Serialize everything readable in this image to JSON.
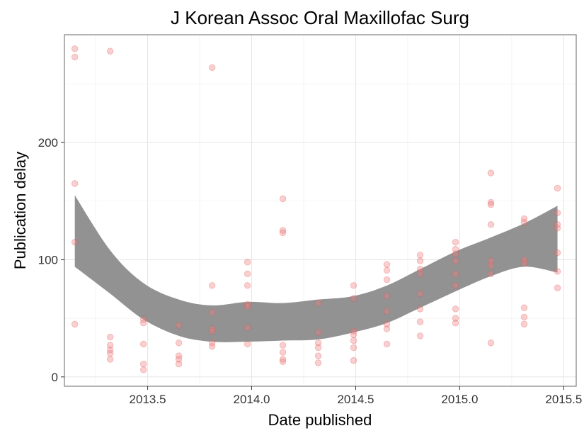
{
  "chart_data": {
    "type": "scatter",
    "title": "J Korean Assoc Oral Maxillofac Surg",
    "xlabel": "Date published",
    "ylabel": "Publication delay",
    "xlim": [
      2013.1,
      2015.56
    ],
    "ylim": [
      -8,
      292
    ],
    "x_ticks": [
      2013.5,
      2014.0,
      2014.5,
      2015.0,
      2015.5
    ],
    "x_tick_labels": [
      "2013.5",
      "2014.0",
      "2014.5",
      "2015.0",
      "2015.5"
    ],
    "y_ticks": [
      0,
      100,
      200
    ],
    "y_tick_labels": [
      "0",
      "100",
      "200"
    ],
    "grid": true,
    "point_color": "#f08080",
    "band_color": "#8c8c8c",
    "points": [
      {
        "x": 2013.15,
        "y": 280
      },
      {
        "x": 2013.15,
        "y": 273
      },
      {
        "x": 2013.15,
        "y": 165
      },
      {
        "x": 2013.15,
        "y": 115
      },
      {
        "x": 2013.15,
        "y": 45
      },
      {
        "x": 2013.32,
        "y": 278
      },
      {
        "x": 2013.32,
        "y": 34
      },
      {
        "x": 2013.32,
        "y": 27
      },
      {
        "x": 2013.32,
        "y": 23
      },
      {
        "x": 2013.32,
        "y": 20
      },
      {
        "x": 2013.32,
        "y": 15
      },
      {
        "x": 2013.48,
        "y": 49
      },
      {
        "x": 2013.48,
        "y": 46
      },
      {
        "x": 2013.48,
        "y": 28
      },
      {
        "x": 2013.48,
        "y": 11
      },
      {
        "x": 2013.48,
        "y": 6
      },
      {
        "x": 2013.65,
        "y": 44
      },
      {
        "x": 2013.65,
        "y": 29
      },
      {
        "x": 2013.65,
        "y": 18
      },
      {
        "x": 2013.65,
        "y": 15
      },
      {
        "x": 2013.65,
        "y": 11
      },
      {
        "x": 2013.81,
        "y": 264
      },
      {
        "x": 2013.81,
        "y": 78
      },
      {
        "x": 2013.81,
        "y": 55
      },
      {
        "x": 2013.81,
        "y": 41
      },
      {
        "x": 2013.81,
        "y": 39
      },
      {
        "x": 2013.81,
        "y": 29
      },
      {
        "x": 2013.81,
        "y": 26
      },
      {
        "x": 2013.98,
        "y": 98
      },
      {
        "x": 2013.98,
        "y": 88
      },
      {
        "x": 2013.98,
        "y": 78
      },
      {
        "x": 2013.98,
        "y": 62
      },
      {
        "x": 2013.98,
        "y": 60
      },
      {
        "x": 2013.98,
        "y": 42
      },
      {
        "x": 2013.98,
        "y": 28
      },
      {
        "x": 2014.15,
        "y": 152
      },
      {
        "x": 2014.15,
        "y": 125
      },
      {
        "x": 2014.15,
        "y": 123
      },
      {
        "x": 2014.15,
        "y": 27
      },
      {
        "x": 2014.15,
        "y": 21
      },
      {
        "x": 2014.15,
        "y": 15
      },
      {
        "x": 2014.15,
        "y": 13
      },
      {
        "x": 2014.32,
        "y": 63
      },
      {
        "x": 2014.32,
        "y": 38
      },
      {
        "x": 2014.32,
        "y": 29
      },
      {
        "x": 2014.32,
        "y": 25
      },
      {
        "x": 2014.32,
        "y": 18
      },
      {
        "x": 2014.32,
        "y": 12
      },
      {
        "x": 2014.49,
        "y": 78
      },
      {
        "x": 2014.49,
        "y": 67
      },
      {
        "x": 2014.49,
        "y": 39
      },
      {
        "x": 2014.49,
        "y": 36
      },
      {
        "x": 2014.49,
        "y": 31
      },
      {
        "x": 2014.49,
        "y": 25
      },
      {
        "x": 2014.49,
        "y": 14
      },
      {
        "x": 2014.65,
        "y": 96
      },
      {
        "x": 2014.65,
        "y": 91
      },
      {
        "x": 2014.65,
        "y": 83
      },
      {
        "x": 2014.65,
        "y": 69
      },
      {
        "x": 2014.65,
        "y": 56
      },
      {
        "x": 2014.65,
        "y": 45
      },
      {
        "x": 2014.65,
        "y": 41
      },
      {
        "x": 2014.65,
        "y": 28
      },
      {
        "x": 2014.81,
        "y": 104
      },
      {
        "x": 2014.81,
        "y": 99
      },
      {
        "x": 2014.81,
        "y": 92
      },
      {
        "x": 2014.81,
        "y": 88
      },
      {
        "x": 2014.81,
        "y": 71
      },
      {
        "x": 2014.81,
        "y": 58
      },
      {
        "x": 2014.81,
        "y": 47
      },
      {
        "x": 2014.81,
        "y": 35
      },
      {
        "x": 2014.98,
        "y": 115
      },
      {
        "x": 2014.98,
        "y": 109
      },
      {
        "x": 2014.98,
        "y": 105
      },
      {
        "x": 2014.98,
        "y": 99
      },
      {
        "x": 2014.98,
        "y": 88
      },
      {
        "x": 2014.98,
        "y": 78
      },
      {
        "x": 2014.98,
        "y": 58
      },
      {
        "x": 2014.98,
        "y": 50
      },
      {
        "x": 2014.98,
        "y": 46
      },
      {
        "x": 2015.15,
        "y": 174
      },
      {
        "x": 2015.15,
        "y": 149
      },
      {
        "x": 2015.15,
        "y": 147
      },
      {
        "x": 2015.15,
        "y": 130
      },
      {
        "x": 2015.15,
        "y": 99
      },
      {
        "x": 2015.15,
        "y": 95
      },
      {
        "x": 2015.15,
        "y": 88
      },
      {
        "x": 2015.15,
        "y": 29
      },
      {
        "x": 2015.31,
        "y": 135
      },
      {
        "x": 2015.31,
        "y": 132
      },
      {
        "x": 2015.31,
        "y": 100
      },
      {
        "x": 2015.31,
        "y": 97
      },
      {
        "x": 2015.31,
        "y": 59
      },
      {
        "x": 2015.31,
        "y": 51
      },
      {
        "x": 2015.31,
        "y": 45
      },
      {
        "x": 2015.47,
        "y": 161
      },
      {
        "x": 2015.47,
        "y": 140
      },
      {
        "x": 2015.47,
        "y": 130
      },
      {
        "x": 2015.47,
        "y": 127
      },
      {
        "x": 2015.47,
        "y": 106
      },
      {
        "x": 2015.47,
        "y": 90
      },
      {
        "x": 2015.47,
        "y": 76
      }
    ],
    "smooth_band": {
      "x": [
        2013.15,
        2013.32,
        2013.48,
        2013.65,
        2013.81,
        2013.98,
        2014.15,
        2014.32,
        2014.49,
        2014.65,
        2014.81,
        2014.98,
        2015.15,
        2015.31,
        2015.47
      ],
      "upper": [
        155,
        108,
        80,
        66,
        61,
        64,
        63,
        66,
        69,
        78,
        92,
        107,
        119,
        131,
        146
      ],
      "lower": [
        94,
        71,
        49,
        35,
        30,
        30,
        31,
        32,
        38,
        46,
        59,
        73,
        86,
        94,
        89
      ]
    }
  }
}
